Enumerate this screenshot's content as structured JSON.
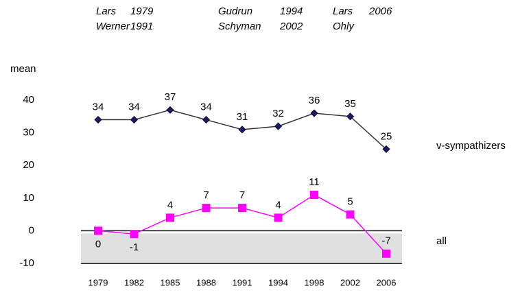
{
  "chart_data": {
    "type": "line",
    "y_label": "mean",
    "annotations": [
      "Lars",
      "1979",
      "Werner",
      "1991",
      "Gudrun",
      "1994",
      "Schyman",
      "2002",
      "Lars",
      "2006",
      "Ohly"
    ],
    "categories": [
      "1979",
      "1982",
      "1985",
      "1988",
      "1991",
      "1994",
      "1998",
      "2002",
      "2006"
    ],
    "series": [
      {
        "name": "v-sympathizers",
        "color": "#1a1a6e",
        "line_color": "#333333",
        "marker": "diamond",
        "values": [
          34,
          34,
          37,
          34,
          31,
          32,
          36,
          35,
          25
        ]
      },
      {
        "name": "all",
        "color": "#ff00ff",
        "line_color": "#ff00ff",
        "marker": "square",
        "values": [
          0,
          -1,
          4,
          7,
          7,
          4,
          11,
          5,
          -7
        ]
      }
    ],
    "ylim": [
      -10,
      40
    ],
    "yticks": [
      -10,
      0,
      10,
      20,
      30,
      40
    ],
    "grid": false
  }
}
